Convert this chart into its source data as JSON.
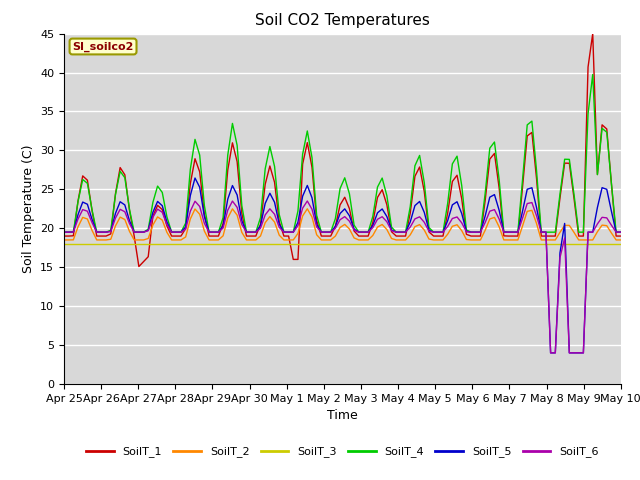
{
  "title": "Soil CO2 Temperatures",
  "xlabel": "Time",
  "ylabel": "Soil Temperature (C)",
  "ylim": [
    0,
    45
  ],
  "annotation_text": "SI_soilco2",
  "plot_bg_color": "#d8d8d8",
  "fig_bg_color": "#ffffff",
  "legend_entries": [
    "SoilT_1",
    "SoilT_2",
    "SoilT_3",
    "SoilT_4",
    "SoilT_5",
    "SoilT_6"
  ],
  "line_colors": [
    "#cc0000",
    "#ff8800",
    "#cccc00",
    "#00cc00",
    "#0000cc",
    "#aa00aa"
  ],
  "xtick_labels": [
    "Apr 25",
    "Apr 26",
    "Apr 27",
    "Apr 28",
    "Apr 29",
    "Apr 30",
    "May 1",
    "May 2",
    "May 3",
    "May 4",
    "May 5",
    "May 6",
    "May 7",
    "May 8",
    "May 9",
    "May 10"
  ],
  "ytick_labels": [
    "0",
    "5",
    "10",
    "15",
    "20",
    "25",
    "30",
    "35",
    "40",
    "45"
  ],
  "title_fontsize": 11,
  "axis_label_fontsize": 9,
  "tick_fontsize": 8
}
